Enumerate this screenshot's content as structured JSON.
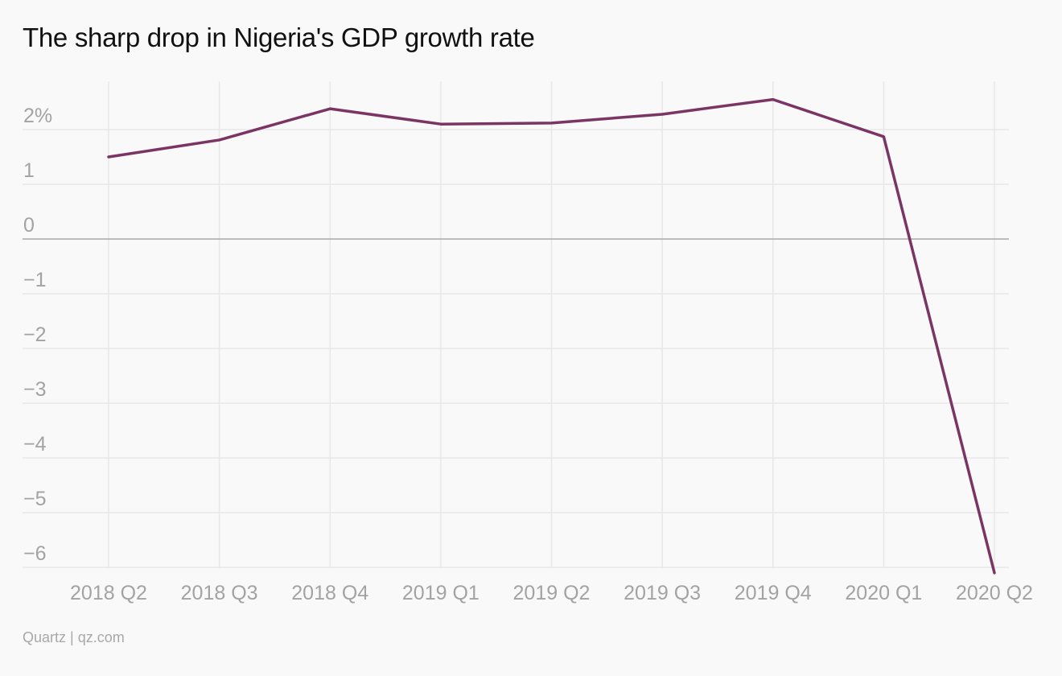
{
  "chart_data": {
    "type": "line",
    "title": "The sharp drop in Nigeria's GDP growth rate",
    "xlabel": "",
    "ylabel": "",
    "categories": [
      "2018 Q2",
      "2018 Q3",
      "2018 Q4",
      "2019 Q1",
      "2019 Q2",
      "2019 Q3",
      "2019 Q4",
      "2020 Q1",
      "2020 Q2"
    ],
    "series": [
      {
        "values": [
          1.5,
          1.81,
          2.38,
          2.1,
          2.12,
          2.28,
          2.55,
          1.87,
          -6.1
        ],
        "color": "#7b3564"
      }
    ],
    "ylim": [
      -6.1,
      2.6
    ],
    "yticks": [
      2,
      1,
      0,
      -1,
      -2,
      -3,
      -4,
      -5,
      -6
    ],
    "ytick_labels": [
      "2%",
      "1",
      "0",
      "−1",
      "−2",
      "−3",
      "−4",
      "−5",
      "−6"
    ],
    "grid": true,
    "zero_line": true,
    "legend": "none"
  },
  "source": "Quartz | qz.com",
  "colors": {
    "background": "#f9f9f9",
    "line": "#7b3564",
    "grid": "#e8e8e8",
    "zero_line": "#a8a8a8",
    "tick_text": "#a3a3a3"
  }
}
